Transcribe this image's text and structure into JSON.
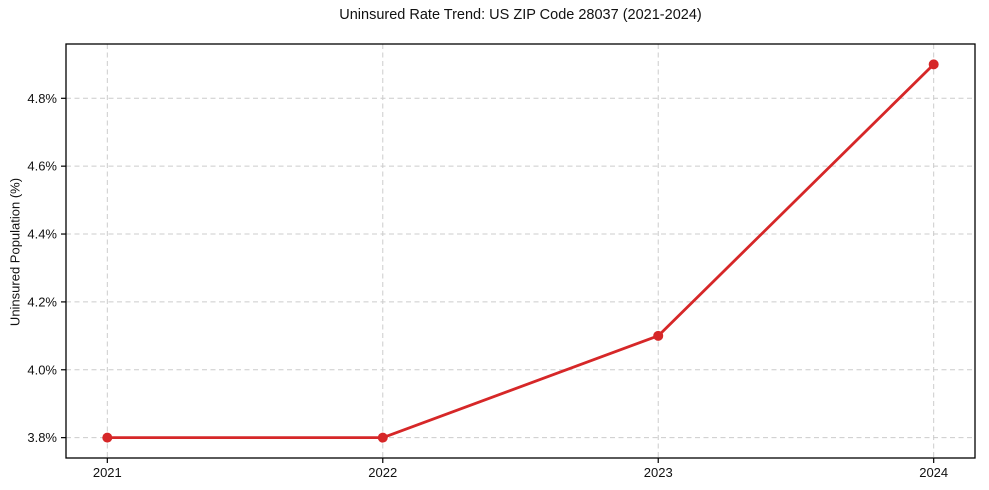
{
  "chart_data": {
    "type": "line",
    "title": "Uninsured Rate Trend: US ZIP Code 28037 (2021-2024)",
    "xlabel": "",
    "ylabel": "Uninsured Population (%)",
    "x": [
      2021,
      2022,
      2023,
      2024
    ],
    "values": [
      3.8,
      3.8,
      4.1,
      4.9
    ],
    "xticks": [
      2021,
      2022,
      2023,
      2024
    ],
    "xtick_labels": [
      "2021",
      "2022",
      "2023",
      "2024"
    ],
    "yticks": [
      3.8,
      4.0,
      4.2,
      4.4,
      4.6,
      4.8
    ],
    "ytick_labels": [
      "3.8%",
      "4.0%",
      "4.2%",
      "4.4%",
      "4.6%",
      "4.8%"
    ],
    "xlim": [
      2020.85,
      2024.15
    ],
    "ylim": [
      3.74,
      4.96
    ],
    "grid": true,
    "grid_style": "dashed",
    "legend_position": "none",
    "line_color": "#d62728",
    "grid_color": "#cccccc",
    "frame_color": "#000000",
    "marker": "circle"
  }
}
